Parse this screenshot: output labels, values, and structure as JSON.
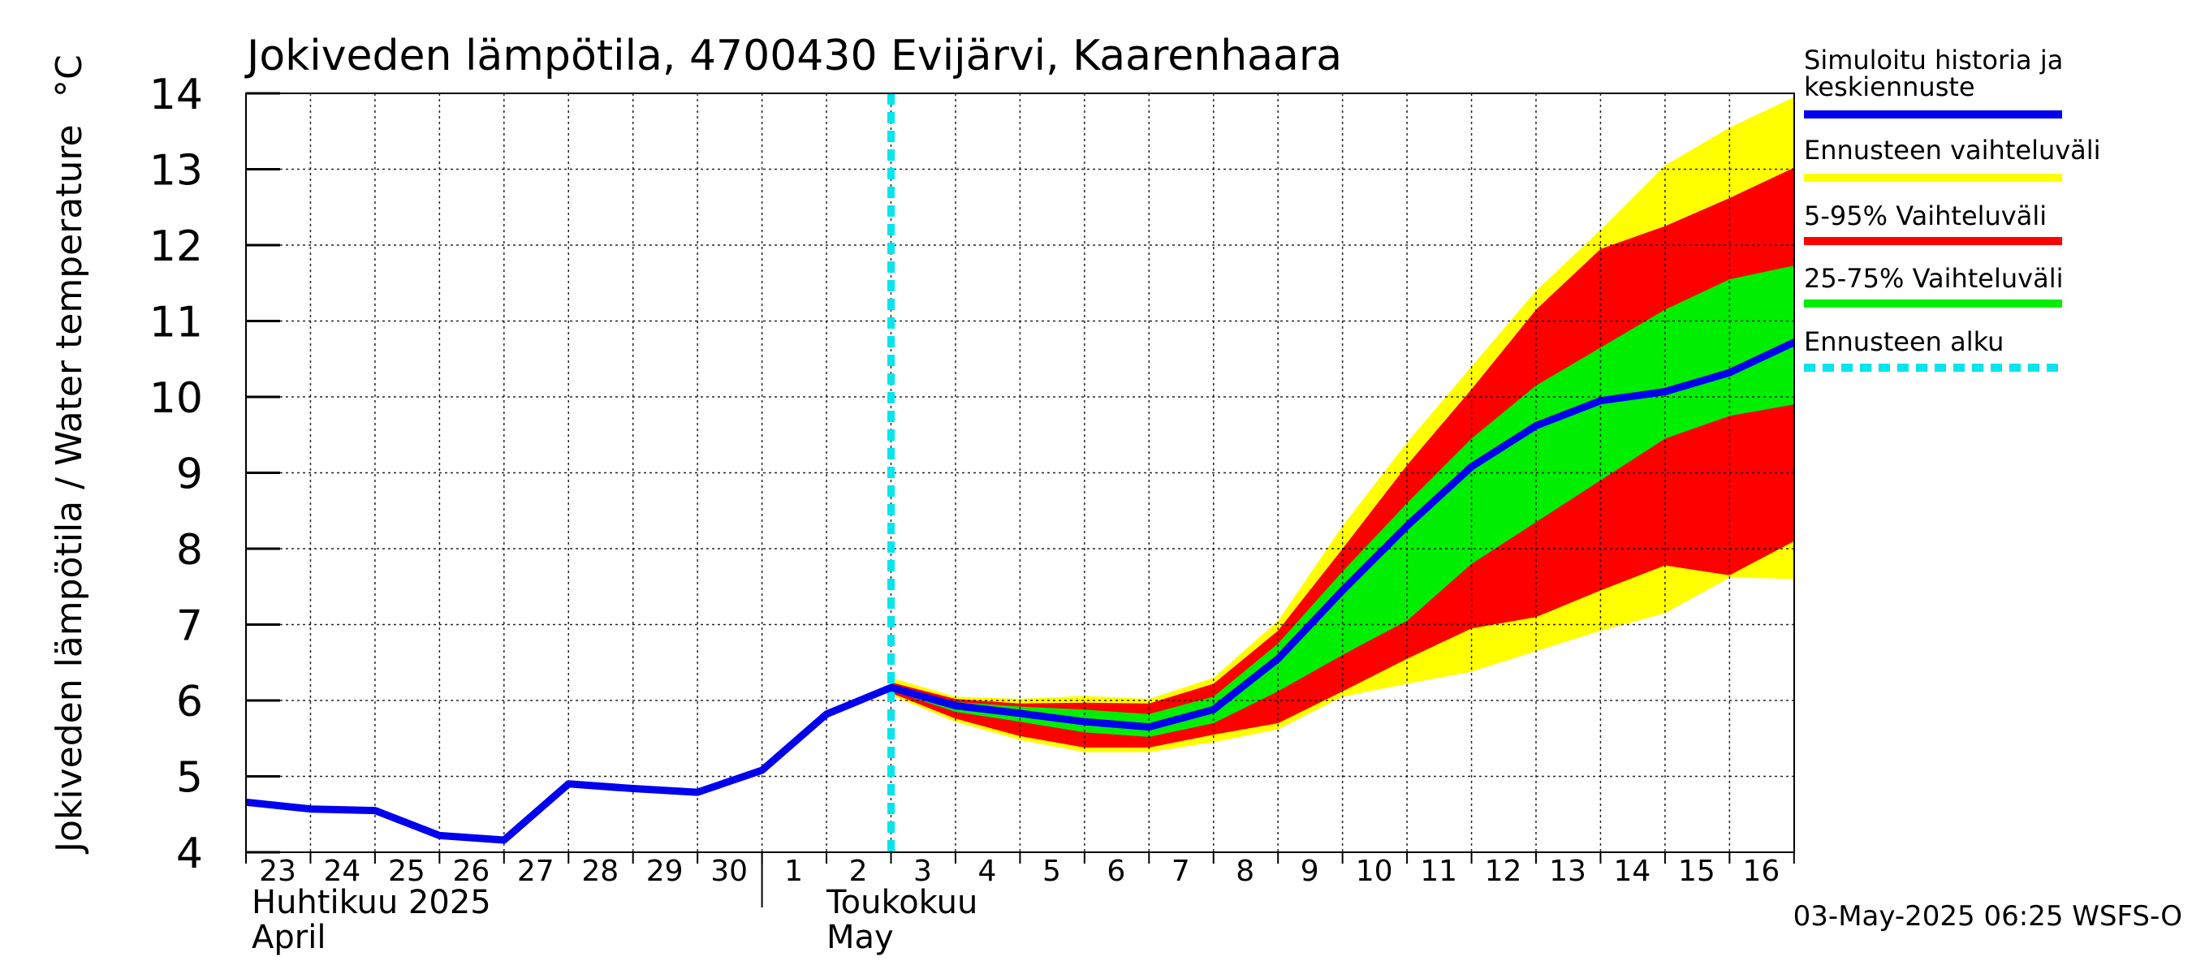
{
  "chart_data": {
    "type": "line",
    "title": "Jokiveden lämpötila, 4700430 Evijärvi, Kaarenhaara",
    "ylabel": "Jokiveden lämpötila / Water temperature",
    "yunit": "°C",
    "ylim": [
      4,
      14
    ],
    "yticks": [
      4,
      5,
      6,
      7,
      8,
      9,
      10,
      11,
      12,
      13,
      14
    ],
    "x_days": [
      "23",
      "24",
      "25",
      "26",
      "27",
      "28",
      "29",
      "30",
      "1",
      "2",
      "3",
      "4",
      "5",
      "6",
      "7",
      "8",
      "9",
      "10",
      "11",
      "12",
      "13",
      "14",
      "15",
      "16"
    ],
    "month_labels": [
      {
        "line1": "Huhtikuu  2025",
        "line2": "April"
      },
      {
        "line1": "Toukokuu",
        "line2": "May"
      }
    ],
    "grid": true,
    "legend_position": "right",
    "footer": "03-May-2025 06:25 WSFS-O",
    "forecast_start": "2025-05-03",
    "colors": {
      "history": "#0000ee",
      "range_full": "#ffff00",
      "range_5_95": "#ff0000",
      "range_25_75": "#00ee00",
      "forecast_start": "#00e5ee"
    },
    "legend": [
      {
        "label_line1": "Simuloitu historia ja",
        "label_line2": "keskiennuste",
        "key": "history"
      },
      {
        "label_line1": "Ennusteen vaihteluväli",
        "label_line2": "",
        "key": "range_full"
      },
      {
        "label_line1": "5-95% Vaihteluväli",
        "label_line2": "",
        "key": "range_5_95"
      },
      {
        "label_line1": "25-75% Vaihteluväli",
        "label_line2": "",
        "key": "range_25_75"
      },
      {
        "label_line1": "Ennusteen alku",
        "label_line2": "",
        "key": "forecast_start"
      }
    ],
    "history": [
      [
        "2025-04-23",
        4.66
      ],
      [
        "2025-04-24",
        4.57
      ],
      [
        "2025-04-25",
        4.55
      ],
      [
        "2025-04-26",
        4.22
      ],
      [
        "2025-04-27",
        4.16
      ],
      [
        "2025-04-28",
        4.9
      ],
      [
        "2025-04-29",
        4.84
      ],
      [
        "2025-04-30",
        4.79
      ],
      [
        "2025-05-01",
        5.08
      ],
      [
        "2025-05-02",
        5.82
      ],
      [
        "2025-05-03",
        6.17
      ]
    ],
    "forecast_dates": [
      "2025-05-03",
      "2025-05-04",
      "2025-05-05",
      "2025-05-06",
      "2025-05-07",
      "2025-05-08",
      "2025-05-09",
      "2025-05-10",
      "2025-05-11",
      "2025-05-12",
      "2025-05-13",
      "2025-05-14",
      "2025-05-15",
      "2025-05-16",
      "2025-05-17"
    ],
    "forecast_median": [
      6.17,
      5.93,
      5.83,
      5.72,
      5.65,
      5.88,
      6.55,
      7.45,
      8.3,
      9.08,
      9.62,
      9.95,
      10.07,
      10.32,
      10.72
    ],
    "range_full": {
      "upper": [
        6.3,
        6.05,
        6.02,
        6.06,
        6.02,
        6.3,
        7.05,
        8.3,
        9.4,
        10.4,
        11.4,
        12.2,
        13.05,
        13.55,
        13.95
      ],
      "lower": [
        6.07,
        5.72,
        5.48,
        5.32,
        5.32,
        5.45,
        5.62,
        6.05,
        6.22,
        6.38,
        6.65,
        6.92,
        7.15,
        7.62,
        7.6
      ]
    },
    "range_5_95": {
      "upper": [
        6.24,
        6.02,
        5.96,
        5.97,
        5.96,
        6.22,
        6.92,
        8.0,
        9.1,
        10.1,
        11.15,
        11.95,
        12.25,
        12.62,
        13.02
      ],
      "lower": [
        6.1,
        5.76,
        5.53,
        5.38,
        5.38,
        5.55,
        5.7,
        6.12,
        6.55,
        6.95,
        7.1,
        7.45,
        7.78,
        7.65,
        8.1
      ]
    },
    "range_25_75": {
      "upper": [
        6.2,
        5.98,
        5.92,
        5.88,
        5.82,
        6.05,
        6.75,
        7.7,
        8.6,
        9.45,
        10.15,
        10.65,
        11.15,
        11.55,
        11.73
      ],
      "lower": [
        6.13,
        5.85,
        5.72,
        5.58,
        5.52,
        5.7,
        6.12,
        6.6,
        7.05,
        7.8,
        8.35,
        8.9,
        9.45,
        9.75,
        9.9
      ]
    }
  }
}
